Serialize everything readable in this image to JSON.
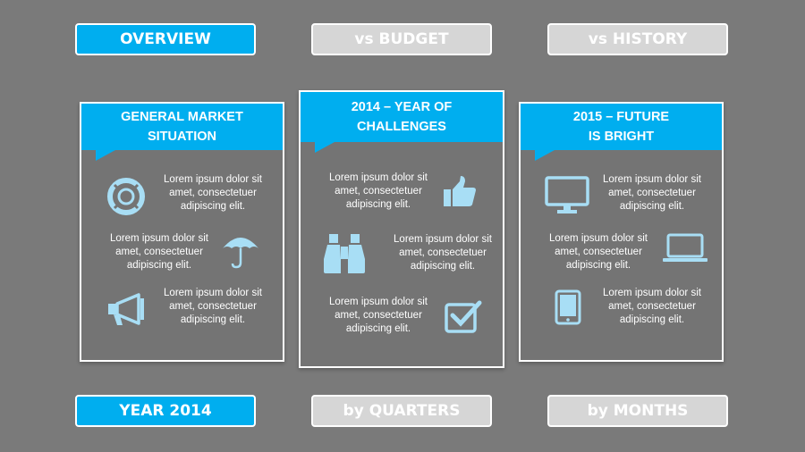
{
  "tabs_top": [
    {
      "label": "OVERVIEW",
      "state": "active"
    },
    {
      "label": "vs BUDGET",
      "state": "inactive"
    },
    {
      "label": "vs HISTORY",
      "state": "inactive"
    }
  ],
  "tabs_bottom": [
    {
      "label": "YEAR 2014",
      "state": "active"
    },
    {
      "label": "by QUARTERS",
      "state": "inactive"
    },
    {
      "label": "by MONTHS",
      "state": "inactive"
    }
  ],
  "colors": {
    "accent": "#00aeef",
    "background": "#7a7a7a",
    "icon": "#a8def5",
    "inactive": "#d6d6d6"
  },
  "cards": [
    {
      "title_line1": "GENERAL MARKET",
      "title_line2": "SITUATION",
      "items": [
        {
          "icon": "lifebuoy-icon",
          "text": "Lorem ipsum dolor sit amet, consectetuer adipiscing elit."
        },
        {
          "icon": "umbrella-icon",
          "text": "Lorem ipsum dolor sit amet, consectetuer adipiscing elit."
        },
        {
          "icon": "megaphone-icon",
          "text": "Lorem ipsum dolor sit amet, consectetuer adipiscing elit."
        }
      ]
    },
    {
      "title_line1": "2014 – YEAR OF",
      "title_line2": "CHALLENGES",
      "items": [
        {
          "icon": "thumbs-up-icon",
          "text": "Lorem ipsum dolor sit amet, consectetuer adipiscing elit."
        },
        {
          "icon": "binoculars-icon",
          "text": "Lorem ipsum dolor sit amet, consectetuer adipiscing elit."
        },
        {
          "icon": "checkbox-icon",
          "text": "Lorem ipsum dolor sit amet, consectetuer adipiscing elit."
        }
      ]
    },
    {
      "title_line1": "2015 – FUTURE",
      "title_line2": "IS BRIGHT",
      "items": [
        {
          "icon": "monitor-icon",
          "text": "Lorem ipsum dolor sit amet, consectetuer adipiscing elit."
        },
        {
          "icon": "laptop-icon",
          "text": "Lorem ipsum dolor sit amet, consectetuer adipiscing elit."
        },
        {
          "icon": "tablet-icon",
          "text": "Lorem ipsum dolor sit amet, consectetuer adipiscing elit."
        }
      ]
    }
  ]
}
